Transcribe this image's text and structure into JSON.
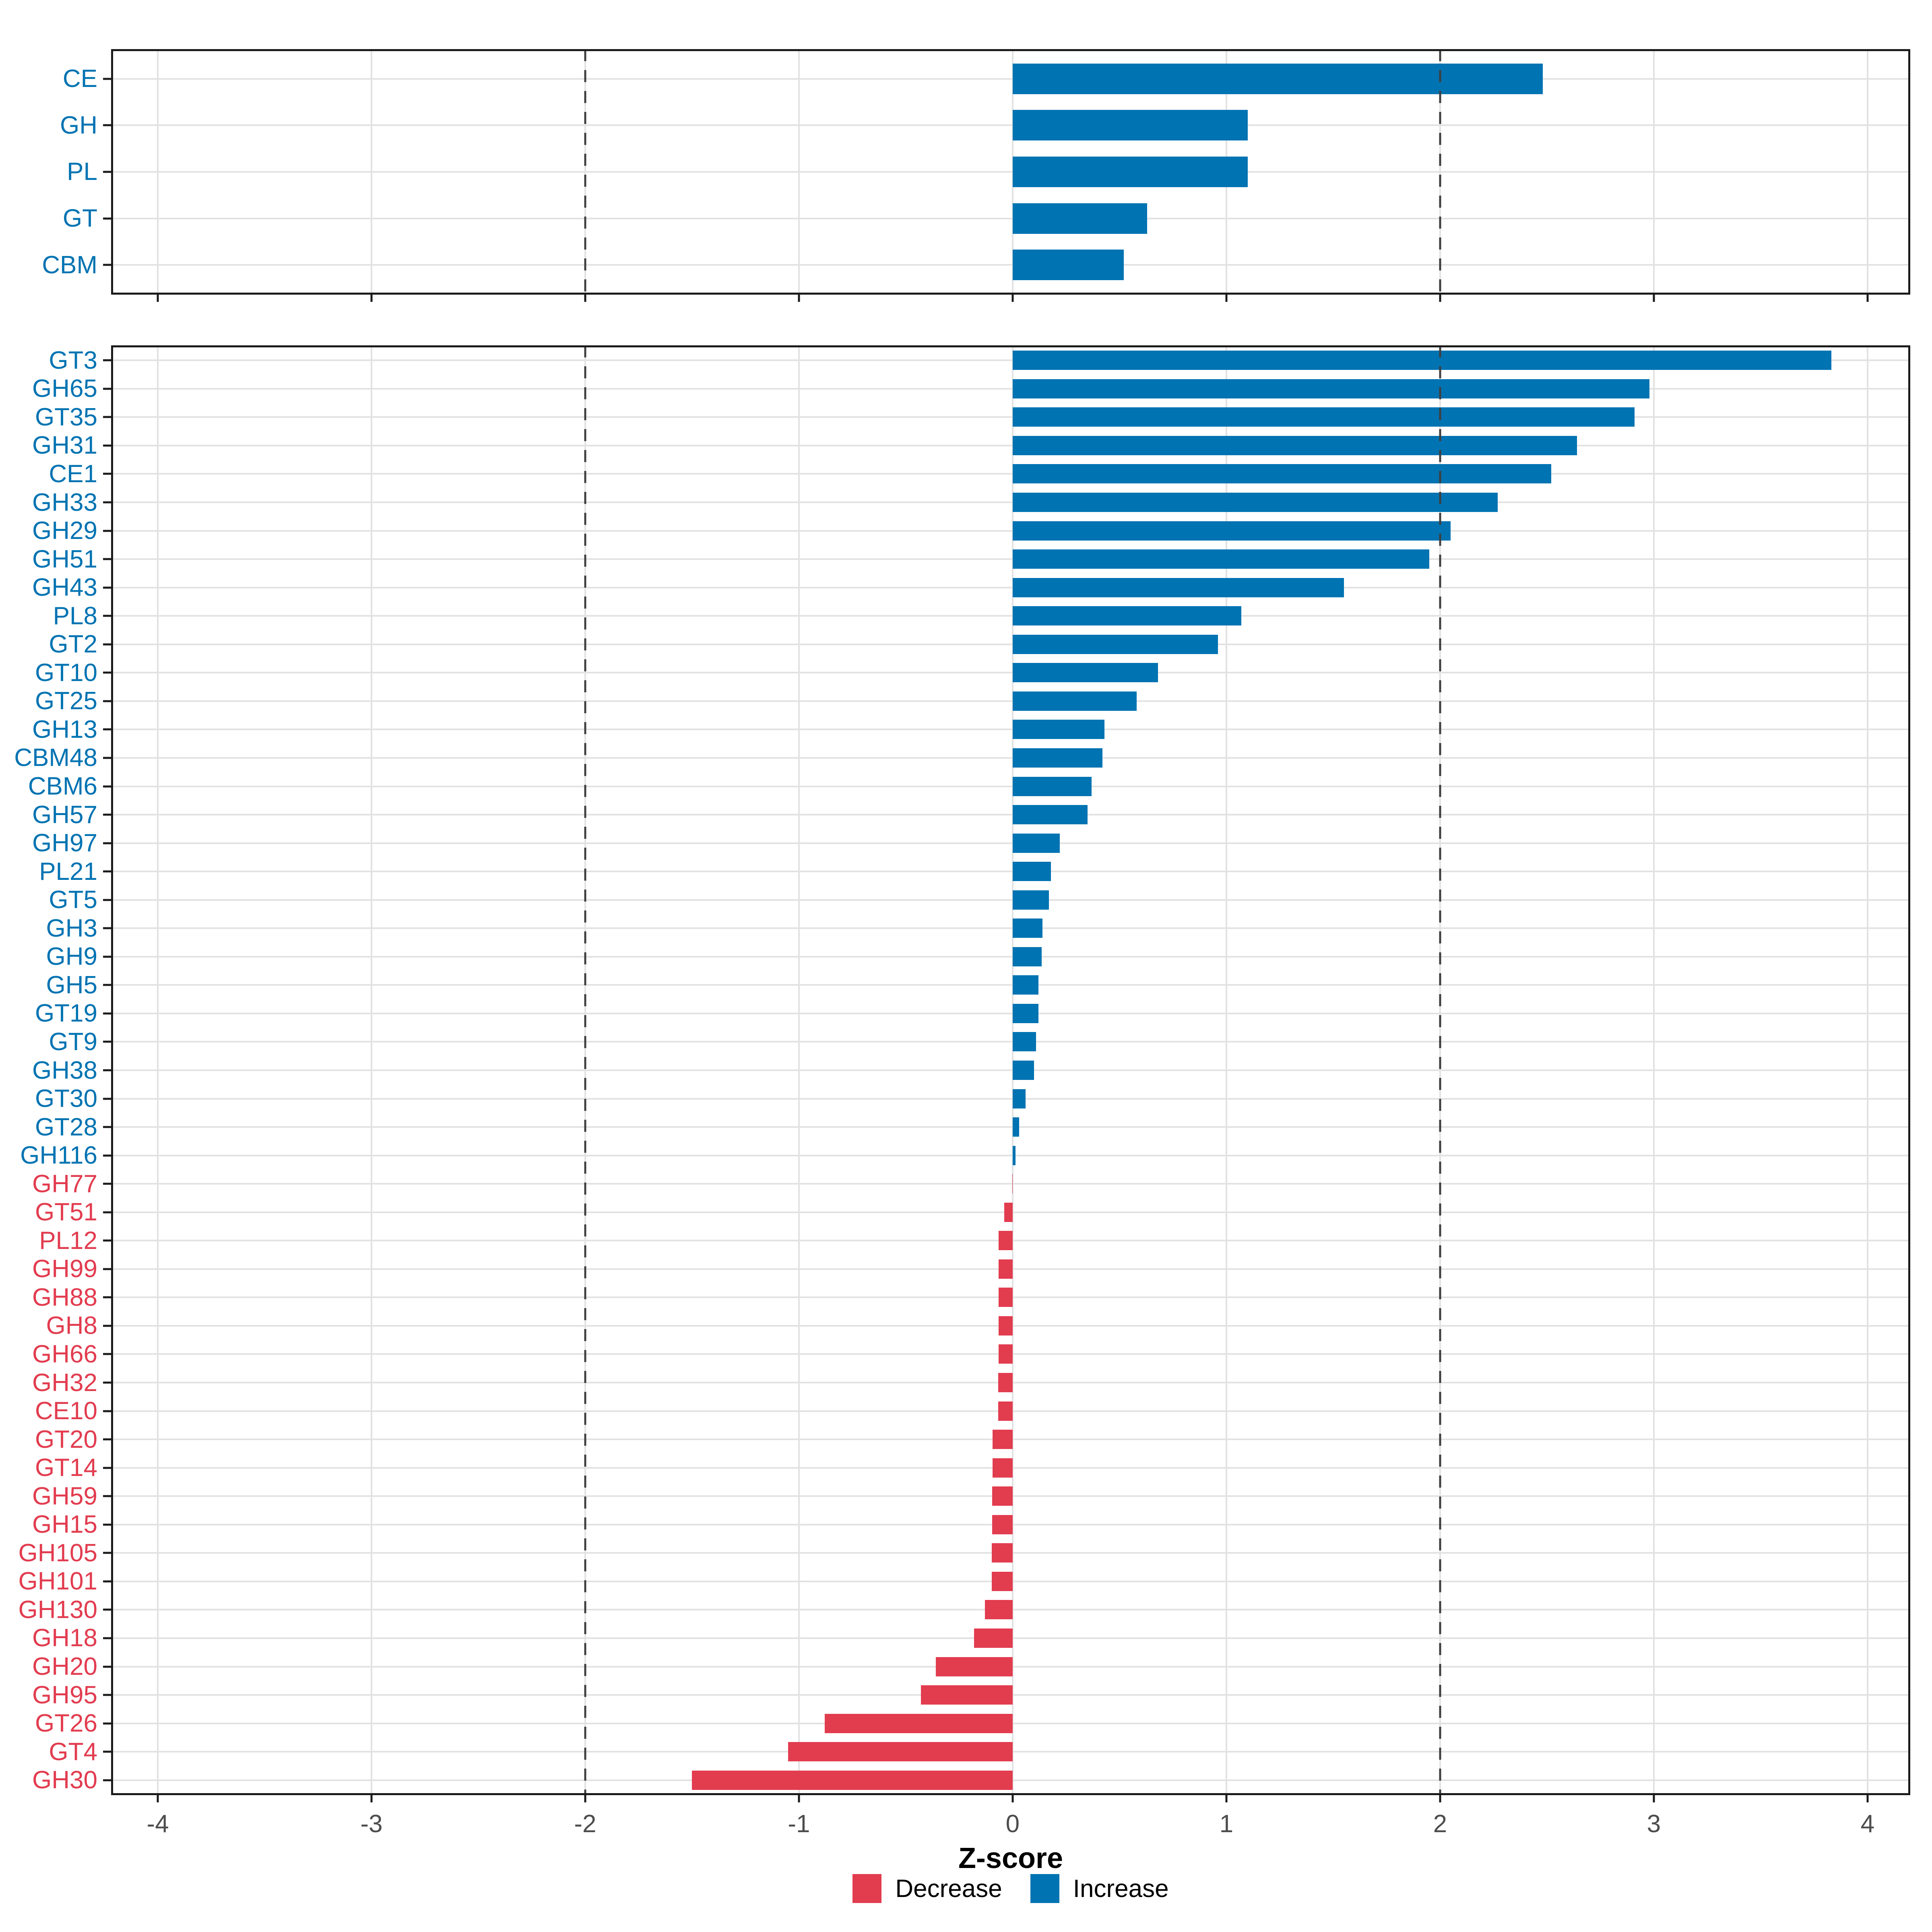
{
  "axis": {
    "title": "Z-score",
    "ticks": [
      -4,
      -3,
      -2,
      -1,
      0,
      1,
      2,
      3,
      4
    ],
    "domain": [
      -4.21,
      4.21
    ],
    "reference_lines": [
      -2,
      2
    ]
  },
  "colors": {
    "increase": "#0073B2",
    "decrease": "#E23C4F",
    "grid": "#E2E2E2",
    "dash": "#3F3F3F",
    "border": "#1A1A1A",
    "tick_label": "#4D4D4D"
  },
  "legend": {
    "items": [
      {
        "label": "Decrease",
        "key": "decrease"
      },
      {
        "label": "Increase",
        "key": "increase"
      }
    ]
  },
  "chart_data": [
    {
      "type": "bar",
      "orientation": "horizontal",
      "panel": "cazyme-class",
      "xlabel": "Z-score",
      "xlim": [
        -4.21,
        4.21
      ],
      "grid": true,
      "categories": [
        "CE",
        "GH",
        "PL",
        "GT",
        "CBM"
      ],
      "values": [
        2.48,
        1.1,
        1.1,
        0.63,
        0.52
      ]
    },
    {
      "type": "bar",
      "orientation": "horizontal",
      "panel": "cazyme-family",
      "xlabel": "Z-score",
      "xlim": [
        -4.21,
        4.21
      ],
      "grid": true,
      "categories": [
        "GT3",
        "GH65",
        "GT35",
        "GH31",
        "CE1",
        "GH33",
        "GH29",
        "GH51",
        "GH43",
        "PL8",
        "GT2",
        "GT10",
        "GT25",
        "GH13",
        "CBM48",
        "CBM6",
        "GH57",
        "GH97",
        "PL21",
        "GT5",
        "GH3",
        "GH9",
        "GH5",
        "GT19",
        "GT9",
        "GH38",
        "GT30",
        "GT28",
        "GH116",
        "GH77",
        "GT51",
        "PL12",
        "GH99",
        "GH88",
        "GH8",
        "GH66",
        "GH32",
        "CE10",
        "GT20",
        "GT14",
        "GH59",
        "GH15",
        "GH105",
        "GH101",
        "GH130",
        "GH18",
        "GH20",
        "GH95",
        "GT26",
        "GT4",
        "GH30"
      ],
      "values": [
        3.83,
        2.98,
        2.91,
        2.64,
        2.52,
        2.27,
        2.05,
        1.95,
        1.55,
        1.07,
        0.96,
        0.68,
        0.58,
        0.43,
        0.42,
        0.37,
        0.35,
        0.22,
        0.18,
        0.17,
        0.14,
        0.135,
        0.12,
        0.12,
        0.11,
        0.1,
        0.06,
        0.03,
        0.014,
        -0.002,
        -0.04,
        -0.065,
        -0.065,
        -0.065,
        -0.066,
        -0.066,
        -0.068,
        -0.068,
        -0.095,
        -0.095,
        -0.096,
        -0.096,
        -0.097,
        -0.097,
        -0.13,
        -0.18,
        -0.36,
        -0.43,
        -0.88,
        -1.05,
        -1.5
      ]
    }
  ]
}
